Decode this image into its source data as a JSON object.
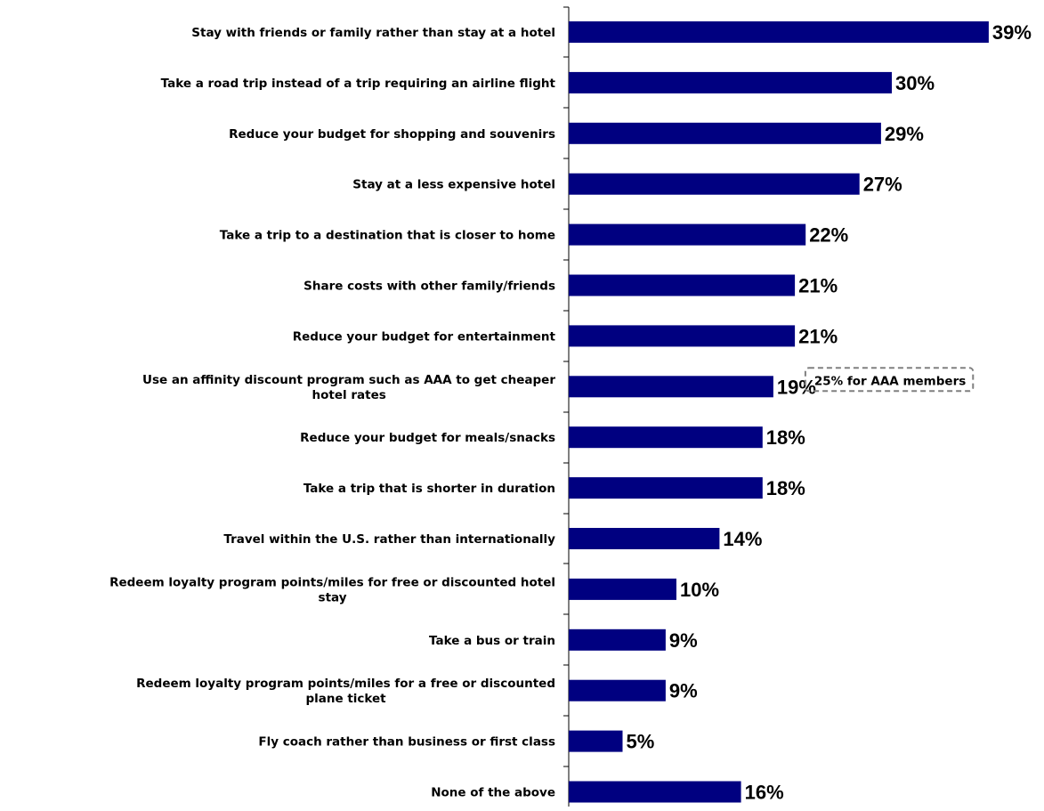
{
  "chart_data": {
    "type": "bar",
    "orientation": "horizontal",
    "title": "",
    "xlabel": "",
    "ylabel": "",
    "grid": false,
    "bar_color": "#000080",
    "xlim": [
      0,
      40
    ],
    "value_suffix": "%",
    "categories": [
      [
        "Stay with friends or family rather than stay at a hotel"
      ],
      [
        "Take a road trip instead of a trip requiring an airline flight"
      ],
      [
        "Reduce your budget for shopping and souvenirs"
      ],
      [
        "Stay at a less expensive hotel"
      ],
      [
        "Take a trip to a destination that is closer to home"
      ],
      [
        "Share costs with other family/friends"
      ],
      [
        "Reduce your budget for entertainment"
      ],
      [
        "Use an affinity discount program such as AAA to get cheaper",
        "hotel rates"
      ],
      [
        "Reduce your budget for meals/snacks"
      ],
      [
        "Take a trip that is shorter in duration"
      ],
      [
        "Travel within the U.S. rather than internationally"
      ],
      [
        "Redeem loyalty program points/miles for free or discounted hotel",
        "stay"
      ],
      [
        "Take a bus or train"
      ],
      [
        "Redeem loyalty program points/miles for a free or discounted",
        "plane ticket"
      ],
      [
        "Fly coach rather than business or first class"
      ],
      [
        "None of the above"
      ]
    ],
    "values": [
      39,
      30,
      29,
      27,
      22,
      21,
      21,
      19,
      18,
      18,
      14,
      10,
      9,
      9,
      5,
      16
    ],
    "value_labels": [
      "39%",
      "30%",
      "29%",
      "27%",
      "22%",
      "21%",
      "21%",
      "19%",
      "18%",
      "18%",
      "14%",
      "10%",
      "9%",
      "9%",
      "5%",
      "16%"
    ],
    "annotations": [
      {
        "category_index": 7,
        "text": "25% for AAA members",
        "style": "dashed-box"
      }
    ]
  }
}
